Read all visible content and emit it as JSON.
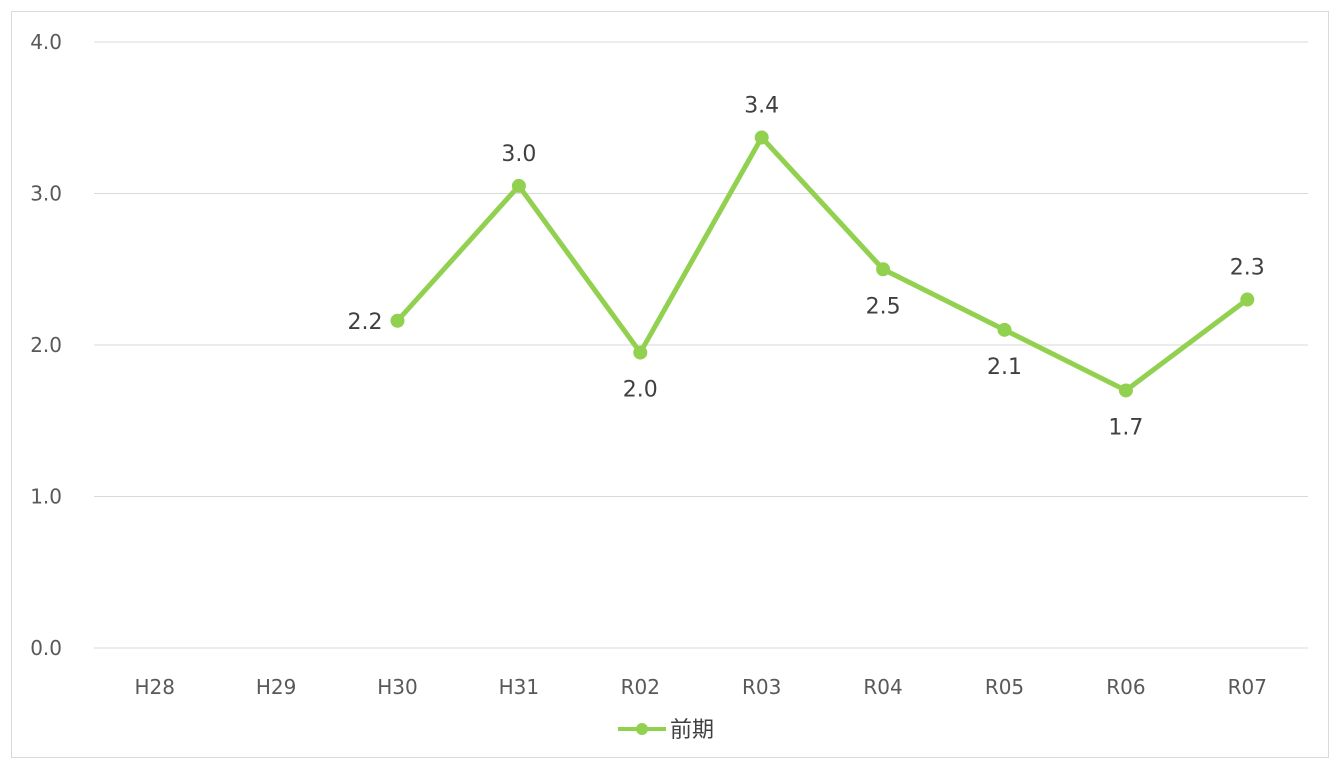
{
  "chart_data": {
    "type": "line",
    "categories": [
      "H28",
      "H29",
      "H30",
      "H31",
      "R02",
      "R03",
      "R04",
      "R05",
      "R06",
      "R07"
    ],
    "series": [
      {
        "name": "前期",
        "values": [
          null,
          null,
          2.16,
          3.05,
          1.95,
          3.37,
          2.5,
          2.1,
          1.7,
          2.3
        ],
        "labels": [
          "",
          "",
          "2.2",
          "3.0",
          "2.0",
          "3.4",
          "2.5",
          "2.1",
          "1.7",
          "2.3"
        ],
        "label_positions": [
          "",
          "",
          "left",
          "above",
          "below",
          "above",
          "below",
          "below",
          "below",
          "above"
        ],
        "color": "#92d050"
      }
    ],
    "yticks": [
      "0.0",
      "1.0",
      "2.0",
      "3.0",
      "4.0"
    ],
    "ylim": [
      0,
      4
    ],
    "grid": true,
    "legend_position": "bottom"
  }
}
